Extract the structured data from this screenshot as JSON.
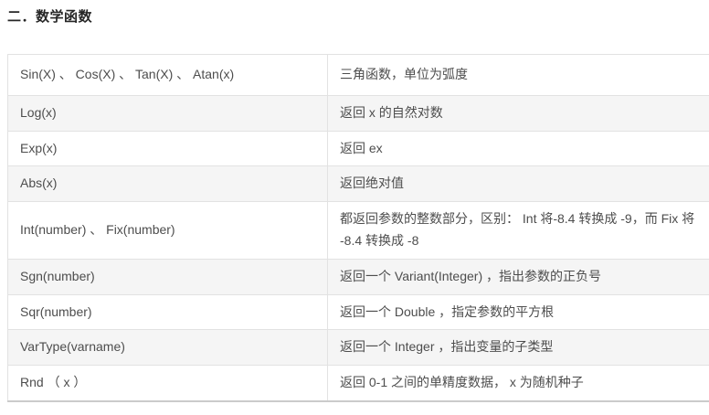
{
  "page": {
    "heading": "二．数学函数"
  },
  "table": {
    "rows": [
      {
        "func": "Sin(X) 、 Cos(X) 、 Tan(X) 、 Atan(x)",
        "desc": "三角函数，单位为弧度"
      },
      {
        "func": "Log(x)",
        "desc": "返回 x 的自然对数"
      },
      {
        "func": "Exp(x)",
        "desc": "返回 ex"
      },
      {
        "func": "Abs(x)",
        "desc": "返回绝对值"
      },
      {
        "func": "Int(number) 、 Fix(number)",
        "desc": "都返回参数的整数部分，区别： Int 将-8.4 转换成 -9，而 Fix 将 -8.4 转换成 -8"
      },
      {
        "func": "Sgn(number)",
        "desc": "返回一个 Variant(Integer) ，指出参数的正负号"
      },
      {
        "func": "Sqr(number)",
        "desc": "返回一个 Double ，指定参数的平方根"
      },
      {
        "func": "VarType(varname)",
        "desc": "返回一个 Integer ，指出变量的子类型"
      },
      {
        "func": "Rnd （ x ）",
        "desc": "返回 0-1 之间的单精度数据， x 为随机种子"
      }
    ]
  },
  "colors": {
    "stripe": "#f5f5f5",
    "border": "#e2e2e2",
    "bottom_border": "#cbcbcb",
    "text": "#4d4d4d",
    "heading_text": "#262626"
  }
}
